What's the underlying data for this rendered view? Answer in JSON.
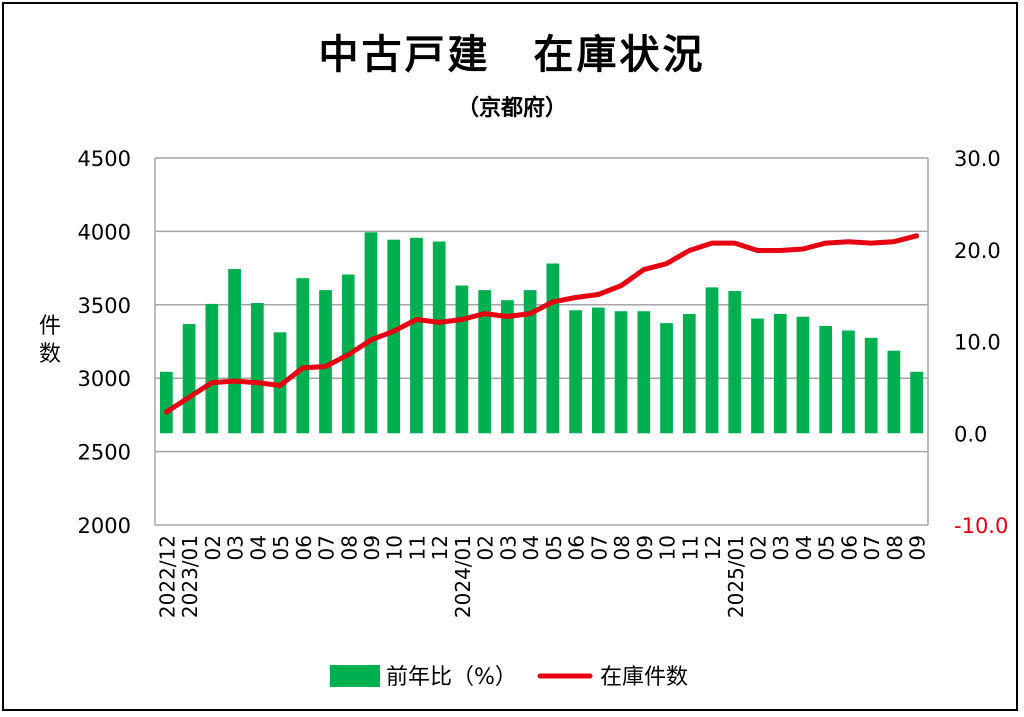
{
  "chart_data": {
    "type": "bar",
    "title": "中古戸建　在庫状況",
    "subtitle": "（京都府）",
    "ylabel_left": "件数",
    "left_axis": {
      "min": 2000,
      "max": 4500,
      "ticks": [
        "2000",
        "2500",
        "3000",
        "3500",
        "4000",
        "4500"
      ]
    },
    "right_axis": {
      "min": -10,
      "max": 30,
      "ticks": [
        "-10.0",
        "0.0",
        "10.0",
        "20.0",
        "30.0"
      ],
      "negative_color": "#e60012"
    },
    "categories": [
      "2022/12",
      "2023/01",
      "02",
      "03",
      "04",
      "05",
      "06",
      "07",
      "08",
      "09",
      "10",
      "11",
      "12",
      "2024/01",
      "02",
      "03",
      "04",
      "05",
      "06",
      "07",
      "08",
      "09",
      "10",
      "11",
      "12",
      "2025/01",
      "02",
      "03",
      "04",
      "05",
      "06",
      "07",
      "08",
      "09"
    ],
    "series": [
      {
        "name": "前年比（%）",
        "type": "bar",
        "axis": "right",
        "color": "#00b050",
        "values": [
          6.7,
          11.9,
          14.1,
          17.9,
          14.2,
          11.0,
          16.9,
          15.6,
          17.3,
          21.9,
          21.1,
          21.3,
          20.9,
          16.1,
          15.6,
          14.5,
          15.6,
          18.5,
          13.4,
          13.7,
          13.3,
          13.3,
          12.0,
          13.0,
          15.9,
          15.5,
          12.5,
          13.0,
          12.7,
          11.7,
          11.2,
          10.4,
          9.0,
          6.7
        ]
      },
      {
        "name": "在庫件数",
        "type": "line",
        "axis": "left",
        "color": "#e60012",
        "values": [
          2770,
          2870,
          2970,
          2980,
          2970,
          2950,
          3070,
          3080,
          3160,
          3260,
          3320,
          3400,
          3380,
          3400,
          3440,
          3420,
          3440,
          3520,
          3550,
          3570,
          3630,
          3740,
          3780,
          3870,
          3920,
          3920,
          3870,
          3870,
          3880,
          3920,
          3930,
          3920,
          3930,
          3970
        ]
      }
    ],
    "grid": true,
    "legend_position": "bottom"
  }
}
